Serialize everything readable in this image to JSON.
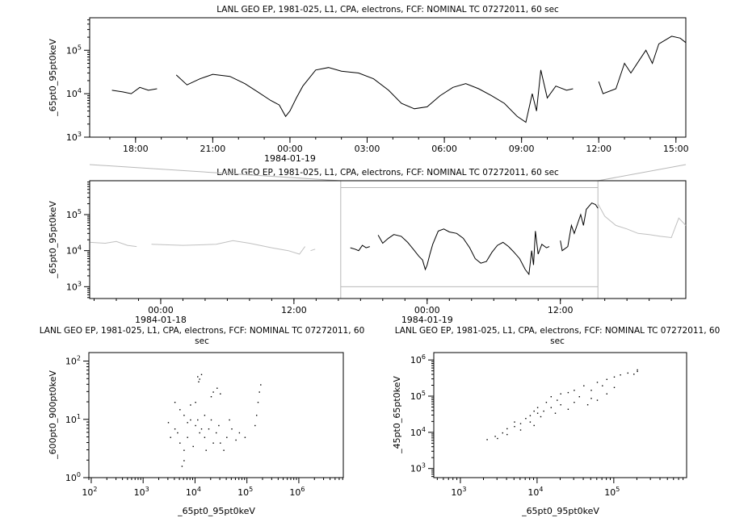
{
  "chart_data": [
    {
      "type": "line",
      "title": "LANL GEO EP, 1981-025, L1, CPA, electrons, FCF: NOMINAL TC 07272011, 60 sec",
      "ylabel": "_65pt0_95pt0keV",
      "xlabel": "",
      "x_range": [
        "1984-01-18T16:13",
        "1984-01-19T15:23"
      ],
      "ylim": [
        1000,
        560000
      ],
      "yscale": "log",
      "x_tick_labels": [
        "18:00",
        "21:00",
        "00:00",
        "03:00",
        "06:00",
        "09:00",
        "12:00",
        "15:00"
      ],
      "x_tick_times": [
        "1984-01-18T18:00",
        "1984-01-18T21:00",
        "1984-01-19T00:00",
        "1984-01-19T03:00",
        "1984-01-19T06:00",
        "1984-01-19T09:00",
        "1984-01-19T12:00",
        "1984-01-19T15:00"
      ],
      "date_label": "1984-01-19",
      "date_label_at": "1984-01-19T00:00",
      "y_tick_exponents": [
        3,
        4,
        5
      ],
      "color": "#000000",
      "series": [
        {
          "points": [
            [
              "1984-01-18T17:05",
              12000
            ],
            [
              "1984-01-18T17:30",
              11000
            ],
            [
              "1984-01-18T17:50",
              10000
            ],
            [
              "1984-01-18T18:10",
              14000
            ],
            [
              "1984-01-18T18:30",
              12000
            ],
            [
              "1984-01-18T18:50",
              13000
            ],
            null,
            [
              "1984-01-18T19:35",
              27000
            ],
            [
              "1984-01-18T20:00",
              16000
            ],
            [
              "1984-01-18T20:30",
              22000
            ],
            [
              "1984-01-18T21:00",
              28000
            ],
            [
              "1984-01-18T21:40",
              25000
            ],
            [
              "1984-01-18T22:15",
              17000
            ],
            [
              "1984-01-18T22:45",
              11000
            ],
            [
              "1984-01-18T23:15",
              7000
            ],
            [
              "1984-01-18T23:35",
              5500
            ],
            [
              "1984-01-18T23:50",
              3000
            ],
            [
              "1984-01-19T00:00",
              4000
            ],
            [
              "1984-01-19T00:15",
              8000
            ],
            [
              "1984-01-19T00:30",
              15000
            ],
            [
              "1984-01-19T01:00",
              35000
            ],
            [
              "1984-01-19T01:30",
              40000
            ],
            [
              "1984-01-19T02:00",
              33000
            ],
            [
              "1984-01-19T02:40",
              30000
            ],
            [
              "1984-01-19T03:15",
              22000
            ],
            [
              "1984-01-19T03:50",
              12000
            ],
            [
              "1984-01-19T04:20",
              6000
            ],
            [
              "1984-01-19T04:50",
              4500
            ],
            [
              "1984-01-19T05:20",
              5000
            ],
            [
              "1984-01-19T05:50",
              9000
            ],
            [
              "1984-01-19T06:20",
              14000
            ],
            [
              "1984-01-19T06:50",
              17000
            ],
            [
              "1984-01-19T07:20",
              13000
            ],
            [
              "1984-01-19T07:50",
              9000
            ],
            [
              "1984-01-19T08:20",
              6000
            ],
            [
              "1984-01-19T08:50",
              3000
            ],
            [
              "1984-01-19T09:10",
              2200
            ],
            [
              "1984-01-19T09:25",
              10000
            ],
            [
              "1984-01-19T09:35",
              4000
            ],
            [
              "1984-01-19T09:45",
              35000
            ],
            [
              "1984-01-19T10:00",
              8000
            ],
            [
              "1984-01-19T10:20",
              15000
            ],
            [
              "1984-01-19T10:45",
              12000
            ],
            [
              "1984-01-19T11:00",
              13000
            ],
            null,
            [
              "1984-01-19T12:00",
              19000
            ],
            [
              "1984-01-19T12:10",
              10000
            ],
            [
              "1984-01-19T12:40",
              13000
            ],
            [
              "1984-01-19T13:00",
              50000
            ],
            [
              "1984-01-19T13:15",
              30000
            ],
            [
              "1984-01-19T13:35",
              60000
            ],
            [
              "1984-01-19T13:50",
              100000
            ],
            [
              "1984-01-19T14:05",
              50000
            ],
            [
              "1984-01-19T14:20",
              140000
            ],
            [
              "1984-01-19T14:50",
              210000
            ],
            [
              "1984-01-19T15:10",
              190000
            ],
            [
              "1984-01-19T15:23",
              150000
            ]
          ]
        }
      ]
    },
    {
      "type": "line",
      "title": "LANL GEO EP, 1981-025, L1, CPA, electrons, FCF: NOMINAL TC 07272011, 60 sec",
      "ylabel": "_65pt0_95pt0keV",
      "x_range": [
        "1984-01-17T17:36",
        "1984-01-19T23:18"
      ],
      "ylim": [
        470,
        870000
      ],
      "yscale": "log",
      "x_tick_labels": [
        "00:00",
        "12:00",
        "00:00",
        "12:00"
      ],
      "x_tick_times": [
        "1984-01-18T00:00",
        "1984-01-18T12:00",
        "1984-01-19T00:00",
        "1984-01-19T12:00"
      ],
      "date_labels": [
        "1984-01-18",
        "1984-01-19"
      ],
      "y_tick_exponents": [
        3,
        4,
        5
      ],
      "context_color": "#c0c0c0",
      "context_series": {
        "points": [
          [
            "1984-01-17T17:40",
            17000
          ],
          [
            "1984-01-17T19:00",
            16000
          ],
          [
            "1984-01-17T20:00",
            18000
          ],
          [
            "1984-01-17T21:00",
            14000
          ],
          [
            "1984-01-17T21:50",
            13000
          ],
          null,
          [
            "1984-01-17T23:10",
            15000
          ],
          [
            "1984-01-18T02:00",
            14000
          ],
          [
            "1984-01-18T05:00",
            15000
          ],
          [
            "1984-01-18T06:30",
            19000
          ],
          [
            "1984-01-18T08:00",
            16000
          ],
          [
            "1984-01-18T10:00",
            12000
          ],
          [
            "1984-01-18T11:30",
            10000
          ],
          [
            "1984-01-18T12:30",
            8000
          ],
          [
            "1984-01-18T13:00",
            13000
          ],
          null,
          [
            "1984-01-18T13:30",
            10000
          ],
          [
            "1984-01-18T13:55",
            11000
          ],
          null,
          [
            "1984-01-19T15:23",
            200000
          ],
          [
            "1984-01-19T16:00",
            90000
          ],
          [
            "1984-01-19T17:00",
            50000
          ],
          [
            "1984-01-19T18:00",
            40000
          ],
          [
            "1984-01-19T19:00",
            30000
          ],
          [
            "1984-01-19T20:00",
            28000
          ],
          [
            "1984-01-19T21:00",
            25000
          ],
          [
            "1984-01-19T22:00",
            23000
          ],
          [
            "1984-01-19T22:40",
            80000
          ],
          [
            "1984-01-19T23:18",
            50000
          ]
        ]
      }
    },
    {
      "type": "scatter",
      "title": "LANL GEO EP, 1981-025, L1, CPA, electrons, FCF: NOMINAL TC 07272011, 60 sec",
      "xlabel": "_65pt0_95pt0keV",
      "ylabel": "_600pt0_900pt0keV",
      "xscale": "log",
      "yscale": "log",
      "xlim": [
        90,
        7200000
      ],
      "ylim": [
        1,
        140
      ],
      "x_tick_exponents": [
        2,
        3,
        4,
        5,
        6
      ],
      "y_tick_exponents": [
        0,
        1,
        2
      ],
      "points": [
        [
          11000,
          55
        ],
        [
          12000,
          50
        ],
        [
          13000,
          60
        ],
        [
          11500,
          45
        ],
        [
          22000,
          30
        ],
        [
          26000,
          35
        ],
        [
          20000,
          25
        ],
        [
          30000,
          28
        ],
        [
          170000,
          30
        ],
        [
          180000,
          40
        ],
        [
          160000,
          20
        ],
        [
          150000,
          12
        ],
        [
          140000,
          8
        ],
        [
          4000,
          20
        ],
        [
          5000,
          15
        ],
        [
          6000,
          12
        ],
        [
          8000,
          10
        ],
        [
          10000,
          8
        ],
        [
          12000,
          6
        ],
        [
          15000,
          5
        ],
        [
          7000,
          5
        ],
        [
          5000,
          4
        ],
        [
          4000,
          7
        ],
        [
          3000,
          9
        ],
        [
          6000,
          3
        ],
        [
          9000,
          3.5
        ],
        [
          18000,
          7
        ],
        [
          25000,
          6
        ],
        [
          30000,
          4
        ],
        [
          40000,
          5
        ],
        [
          50000,
          7
        ],
        [
          60000,
          4.5
        ],
        [
          35000,
          3
        ],
        [
          20000,
          10
        ],
        [
          15000,
          12
        ],
        [
          8000,
          18
        ],
        [
          10000,
          20
        ],
        [
          6000,
          2
        ],
        [
          5500,
          1.6
        ],
        [
          4500,
          6
        ],
        [
          7000,
          9
        ],
        [
          11000,
          10
        ],
        [
          13000,
          7
        ],
        [
          28000,
          8
        ],
        [
          45000,
          10
        ],
        [
          70000,
          6
        ],
        [
          90000,
          5
        ],
        [
          3300,
          5
        ],
        [
          16000,
          3
        ],
        [
          22000,
          4
        ]
      ]
    },
    {
      "type": "scatter",
      "title": "LANL GEO EP, 1981-025, L1, CPA, electrons, FCF: NOMINAL TC 07272011, 60 sec",
      "xlabel": "_65pt0_95pt0keV",
      "ylabel": "_45pt0_65pt0keV",
      "xscale": "log",
      "yscale": "log",
      "xlim": [
        450,
        890000
      ],
      "ylim": [
        560,
        1600000
      ],
      "x_tick_exponents": [
        3,
        4,
        5
      ],
      "y_tick_exponents": [
        3,
        4,
        5,
        6
      ],
      "points": [
        [
          2200,
          6500
        ],
        [
          2800,
          8000
        ],
        [
          3500,
          10000
        ],
        [
          4000,
          13000
        ],
        [
          5000,
          15000
        ],
        [
          5000,
          20000
        ],
        [
          6000,
          18000
        ],
        [
          7000,
          25000
        ],
        [
          8000,
          30000
        ],
        [
          8000,
          20000
        ],
        [
          9000,
          40000
        ],
        [
          10000,
          35000
        ],
        [
          10000,
          50000
        ],
        [
          12000,
          40000
        ],
        [
          13000,
          70000
        ],
        [
          15000,
          50000
        ],
        [
          15000,
          100000
        ],
        [
          18000,
          80000
        ],
        [
          20000,
          120000
        ],
        [
          20000,
          60000
        ],
        [
          25000,
          130000
        ],
        [
          30000,
          150000
        ],
        [
          30000,
          70000
        ],
        [
          35000,
          100000
        ],
        [
          40000,
          200000
        ],
        [
          50000,
          150000
        ],
        [
          50000,
          90000
        ],
        [
          60000,
          250000
        ],
        [
          70000,
          200000
        ],
        [
          80000,
          300000
        ],
        [
          100000,
          350000
        ],
        [
          120000,
          400000
        ],
        [
          150000,
          450000
        ],
        [
          200000,
          500000
        ],
        [
          200000,
          550000
        ],
        [
          180000,
          420000
        ],
        [
          6000,
          12000
        ],
        [
          4000,
          9000
        ],
        [
          3000,
          7000
        ],
        [
          11000,
          28000
        ],
        [
          25000,
          45000
        ],
        [
          17000,
          35000
        ],
        [
          9000,
          16000
        ],
        [
          45000,
          60000
        ],
        [
          60000,
          80000
        ],
        [
          80000,
          120000
        ],
        [
          100000,
          180000
        ]
      ]
    }
  ]
}
